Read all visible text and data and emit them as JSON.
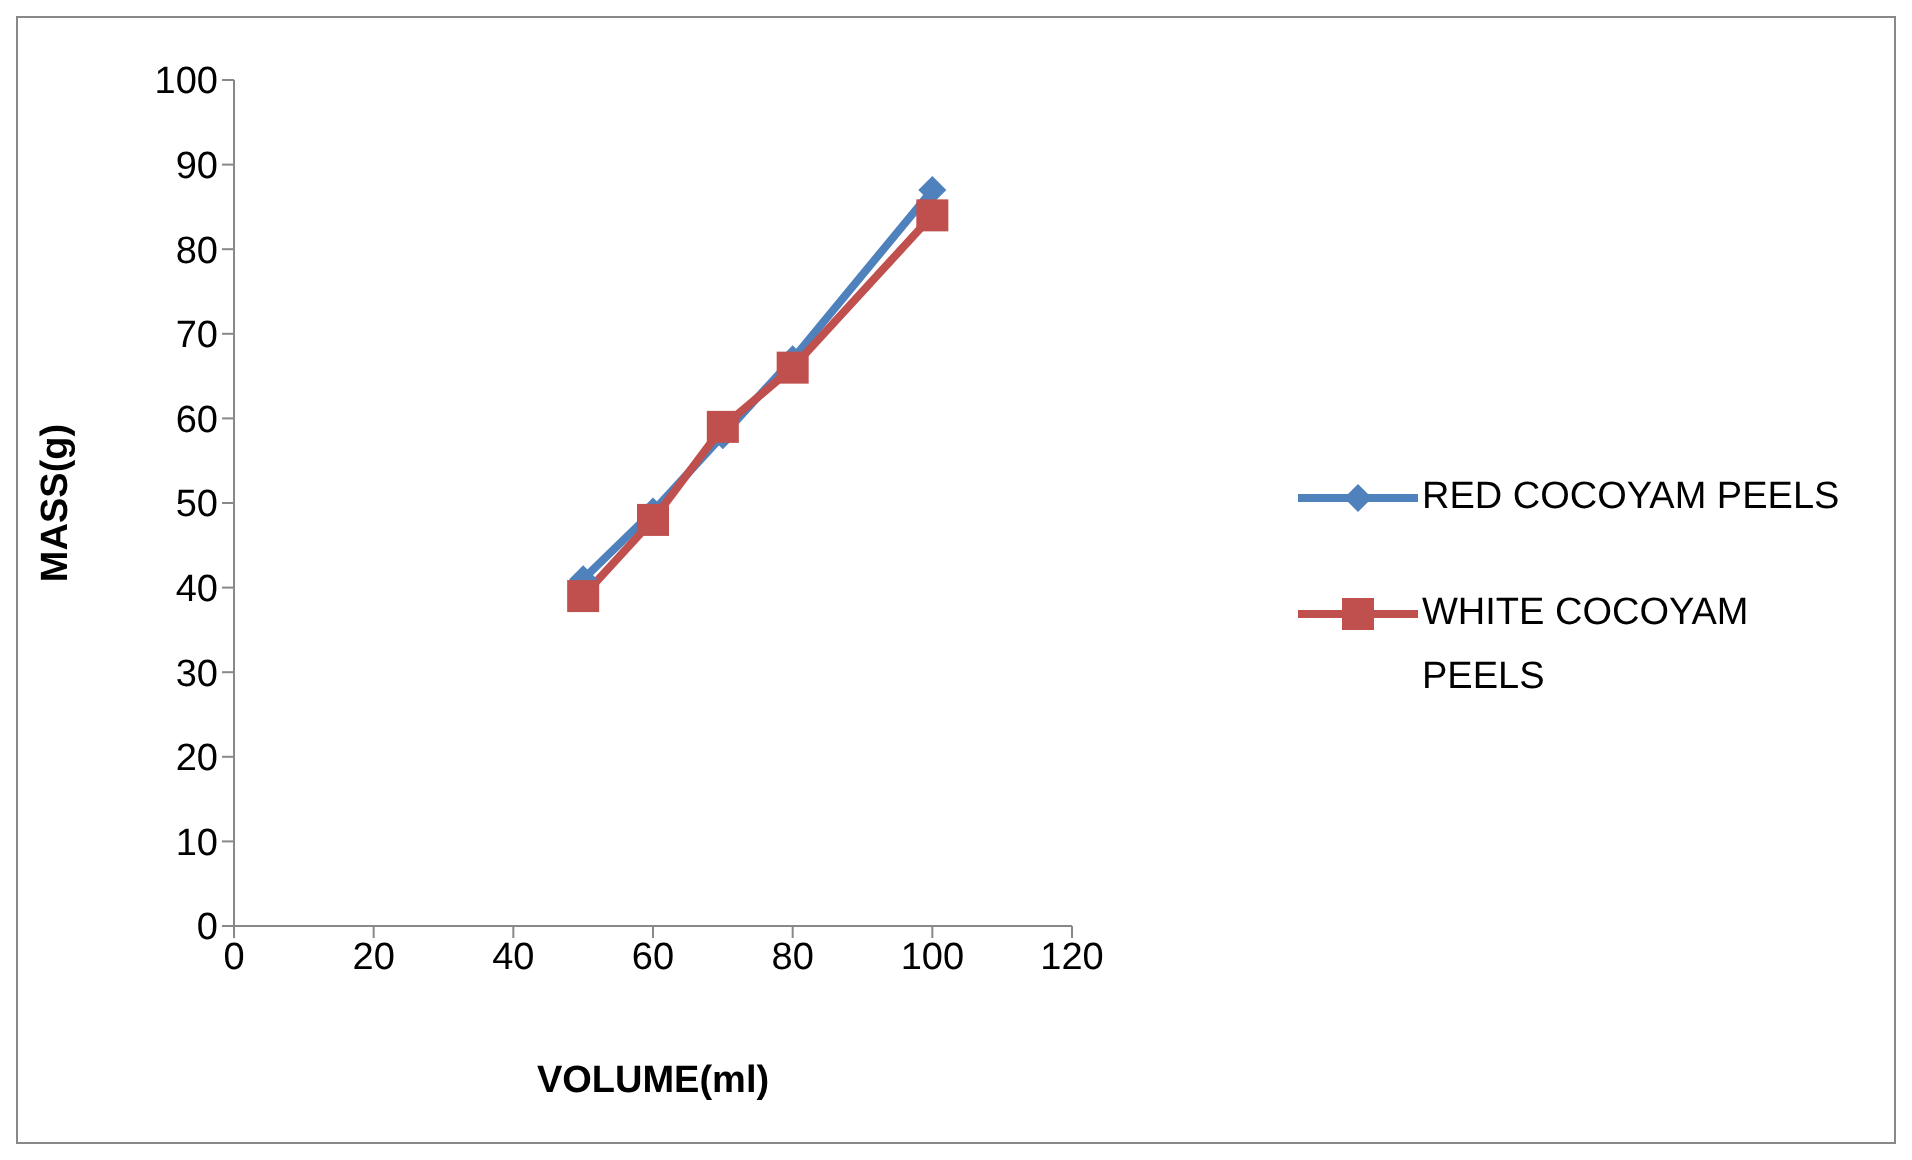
{
  "chart_data": {
    "type": "line",
    "xlabel": "VOLUME(ml)",
    "ylabel": "MASS(g)",
    "x": [
      50,
      60,
      70,
      80,
      100
    ],
    "series": [
      {
        "name": "RED COCOYAM PEELS",
        "color": "#4f81bd",
        "marker": "diamond",
        "values": [
          41,
          49,
          58,
          67,
          87
        ]
      },
      {
        "name": "WHITE COCOYAM PEELS",
        "color": "#c0504d",
        "marker": "square",
        "values": [
          39,
          48,
          59,
          66,
          84
        ]
      }
    ],
    "xlim": [
      0,
      120
    ],
    "xticks": [
      0,
      20,
      40,
      60,
      80,
      100,
      120
    ],
    "ylim": [
      0,
      100
    ],
    "yticks": [
      0,
      10,
      20,
      30,
      40,
      50,
      60,
      70,
      80,
      90,
      100
    ],
    "grid": false,
    "legend": "right"
  }
}
